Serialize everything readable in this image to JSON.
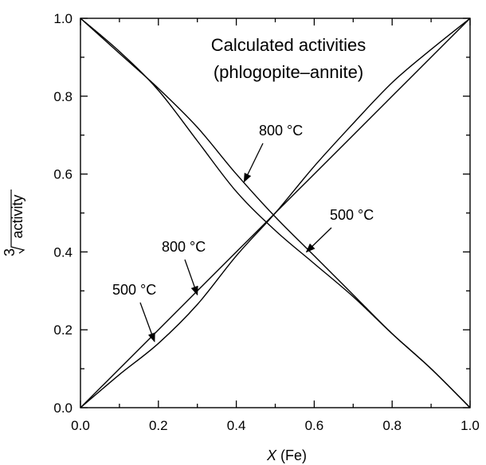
{
  "chart_data": {
    "type": "line",
    "title": "Calculated activities",
    "subtitle": "(phlogopite–annite)",
    "xlabel_italic": "X",
    "xlabel_rest": " (Fe)",
    "ylabel_root_index": "3",
    "ylabel": "activity",
    "xlim": [
      0,
      1
    ],
    "ylim": [
      0,
      1
    ],
    "x_ticks": [
      "0.0",
      "0.2",
      "0.4",
      "0.6",
      "0.8",
      "1.0"
    ],
    "y_ticks": [
      "0.0",
      "0.2",
      "0.4",
      "0.6",
      "0.8",
      "1.0"
    ],
    "series": [
      {
        "x": [
          0,
          0.1,
          0.2,
          0.3,
          0.4,
          0.5,
          0.6,
          0.7,
          0.8,
          0.9,
          1.0
        ],
        "y": [
          0,
          0.085,
          0.165,
          0.265,
          0.39,
          0.5,
          0.62,
          0.73,
          0.835,
          0.92,
          1.0
        ]
      },
      {
        "x": [
          0,
          0.1,
          0.2,
          0.3,
          0.4,
          0.5,
          0.6,
          0.7,
          0.8,
          0.9,
          1.0
        ],
        "y": [
          0,
          0.1,
          0.2,
          0.3,
          0.4,
          0.5,
          0.6,
          0.7,
          0.8,
          0.9,
          1.0
        ]
      },
      {
        "x": [
          0,
          0.1,
          0.2,
          0.3,
          0.4,
          0.5,
          0.6,
          0.7,
          0.8,
          0.9,
          1.0
        ],
        "y": [
          1.0,
          0.915,
          0.815,
          0.685,
          0.555,
          0.455,
          0.37,
          0.285,
          0.19,
          0.1,
          0
        ]
      },
      {
        "x": [
          0,
          0.1,
          0.2,
          0.3,
          0.4,
          0.5,
          0.6,
          0.7,
          0.8,
          0.9,
          1.0
        ],
        "y": [
          1.0,
          0.91,
          0.82,
          0.72,
          0.6,
          0.49,
          0.39,
          0.29,
          0.19,
          0.1,
          0
        ]
      }
    ],
    "annotations": [
      {
        "text": "800 °C",
        "arrow_to": [
          0.42,
          0.58
        ]
      },
      {
        "text": "500 °C",
        "arrow_to": [
          0.58,
          0.4
        ]
      },
      {
        "text": "800 °C",
        "arrow_to": [
          0.3,
          0.29
        ]
      },
      {
        "text": "500 °C",
        "arrow_to": [
          0.19,
          0.17
        ]
      }
    ]
  }
}
